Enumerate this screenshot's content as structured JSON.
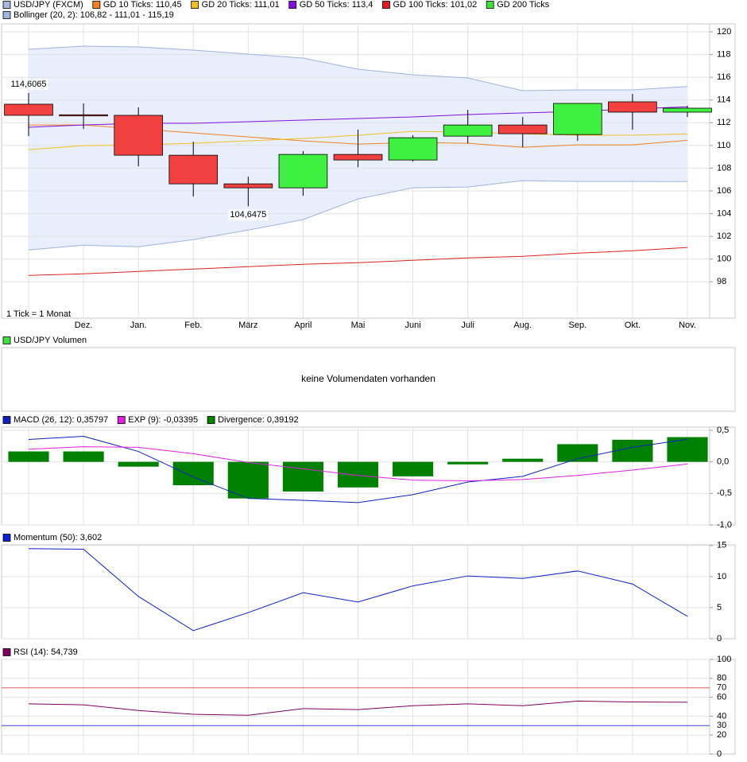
{
  "chart_data": [
    {
      "type": "candlestick",
      "categories": [
        null,
        "Dez.",
        "Jan.",
        "Feb.",
        "März",
        "April",
        "Mai",
        "Juni",
        "Juli",
        "Aug.",
        "Sep.",
        "Okt.",
        "Nov."
      ],
      "ylim": [
        94.8,
        120.7
      ],
      "yticks": [
        98,
        100,
        102,
        104,
        106,
        108,
        110,
        112,
        114,
        116,
        118,
        120
      ],
      "grid": true,
      "note": "1 Tick = 1 Monat",
      "candles": {
        "name": "USD/JPY (FXCM)",
        "color": "#a8b8d8",
        "up_color": "#40f040",
        "down_color": "#f04040",
        "open": [
          113.63,
          112.7,
          112.65,
          109.14,
          106.62,
          106.27,
          109.21,
          108.72,
          110.82,
          111.8,
          110.96,
          113.84,
          112.93
        ],
        "high": [
          114.6065,
          113.7,
          113.35,
          110.33,
          107.25,
          109.5,
          111.38,
          110.9,
          113.14,
          112.5,
          113.7,
          114.54,
          113.49
        ],
        "low": [
          110.82,
          111.45,
          108.16,
          105.5,
          104.6475,
          105.57,
          108.09,
          108.58,
          110.19,
          109.84,
          110.4,
          111.38,
          112.51
        ],
        "close": [
          112.65,
          112.6,
          109.14,
          106.62,
          106.27,
          109.21,
          108.72,
          110.68,
          111.8,
          111.03,
          113.7,
          112.93,
          113.28
        ]
      },
      "bands": {
        "name": "Bollinger (20, 2): 106,82 - 111,01 - 115,19",
        "color": "#a0b4dc",
        "fill": "#e8eefc",
        "upper": [
          118.46,
          118.74,
          118.67,
          118.39,
          118.04,
          117.69,
          116.71,
          116.22,
          115.94,
          114.82,
          114.89,
          114.89,
          115.19
        ],
        "lower": [
          100.8,
          101.22,
          101.08,
          101.71,
          102.55,
          103.47,
          105.29,
          106.27,
          106.34,
          106.9,
          106.83,
          106.83,
          106.82
        ]
      },
      "series": [
        {
          "name": "GD 10 Ticks: 110,45",
          "color": "#f08020",
          "values": [
            111.8,
            111.8,
            111.45,
            111.1,
            110.75,
            110.4,
            110.12,
            110.26,
            110.19,
            109.84,
            110.05,
            110.05,
            110.45
          ]
        },
        {
          "name": "GD 20 Ticks: 111,01",
          "color": "#f0c020",
          "values": [
            109.63,
            109.98,
            110.05,
            110.19,
            110.4,
            110.61,
            110.9,
            111.24,
            111.17,
            111.03,
            110.9,
            110.9,
            111.01
          ]
        },
        {
          "name": "GD 50 Ticks: 113,4",
          "color": "#8010e0",
          "values": [
            111.6,
            111.8,
            111.95,
            111.95,
            112.09,
            112.23,
            112.37,
            112.51,
            112.72,
            112.86,
            113.0,
            113.21,
            113.4
          ]
        },
        {
          "name": "GD 100 Ticks: 101,02",
          "color": "#e02020",
          "values": [
            98.56,
            98.7,
            98.91,
            99.12,
            99.33,
            99.54,
            99.68,
            99.89,
            100.1,
            100.24,
            100.52,
            100.73,
            101.02
          ]
        },
        {
          "name": "GD 200 Ticks",
          "color": "#40e040",
          "values": [
            null,
            null,
            null,
            null,
            null,
            null,
            null,
            null,
            null,
            null,
            null,
            null,
            null
          ]
        }
      ],
      "annotations": [
        {
          "label": "114,6065",
          "value": 114.6065
        },
        {
          "label": "104,6475",
          "value": 104.6475
        }
      ]
    },
    {
      "type": "empty",
      "title": "USD/JPY Volumen",
      "color": "#40e040",
      "message": "keine Volumendaten vorhanden"
    },
    {
      "type": "macd",
      "ylim": [
        -1.0,
        0.55
      ],
      "yticks": [
        {
          "value": 0.5,
          "label": "0,5"
        },
        {
          "value": 0,
          "label": "0,0"
        },
        {
          "value": -0.5,
          "label": "-0,5"
        },
        {
          "value": -1.0,
          "label": "-1,0"
        }
      ],
      "series": [
        {
          "name": "MACD (26, 12): 0,35797",
          "kind": "line",
          "color": "#1020c0",
          "values": [
            0.354,
            0.405,
            0.165,
            -0.24,
            -0.58,
            -0.61,
            -0.645,
            -0.52,
            -0.32,
            -0.23,
            0.05,
            0.23,
            0.35797
          ]
        },
        {
          "name": "EXP (9): -0,03395",
          "kind": "line",
          "color": "#e020e0",
          "values": [
            0.2,
            0.24,
            0.23,
            0.13,
            -0.01,
            -0.11,
            -0.215,
            -0.29,
            -0.3,
            -0.28,
            -0.215,
            -0.13,
            -0.03395
          ]
        },
        {
          "name": "Divergence: 0,39192",
          "kind": "bar",
          "color": "#008000",
          "values": [
            0.165,
            0.165,
            -0.076,
            -0.37,
            -0.58,
            -0.47,
            -0.405,
            -0.23,
            -0.04,
            0.05,
            0.28,
            0.35,
            0.39192
          ]
        }
      ]
    },
    {
      "type": "line",
      "ylim": [
        0,
        15.1
      ],
      "yticks": [
        0,
        5,
        10,
        15
      ],
      "series": [
        {
          "name": "Momentum (50): 3,602",
          "color": "#1020d0",
          "values": [
            14.5,
            14.4,
            6.8,
            1.3,
            4.2,
            7.4,
            5.9,
            8.5,
            10.1,
            9.7,
            10.9,
            8.8,
            3.602
          ]
        }
      ]
    },
    {
      "type": "line",
      "ylim": [
        0,
        100
      ],
      "yticks": [
        0,
        20,
        40,
        60,
        80,
        100
      ],
      "levels": [
        {
          "value": 70,
          "color": "#e06060"
        },
        {
          "value": 30,
          "color": "#4040e0"
        }
      ],
      "series": [
        {
          "name": "RSI (14): 54,739",
          "color": "#800060",
          "values": [
            53,
            52,
            46,
            42,
            41,
            48,
            47,
            51,
            53,
            51,
            56,
            55,
            54.739
          ]
        }
      ]
    }
  ]
}
